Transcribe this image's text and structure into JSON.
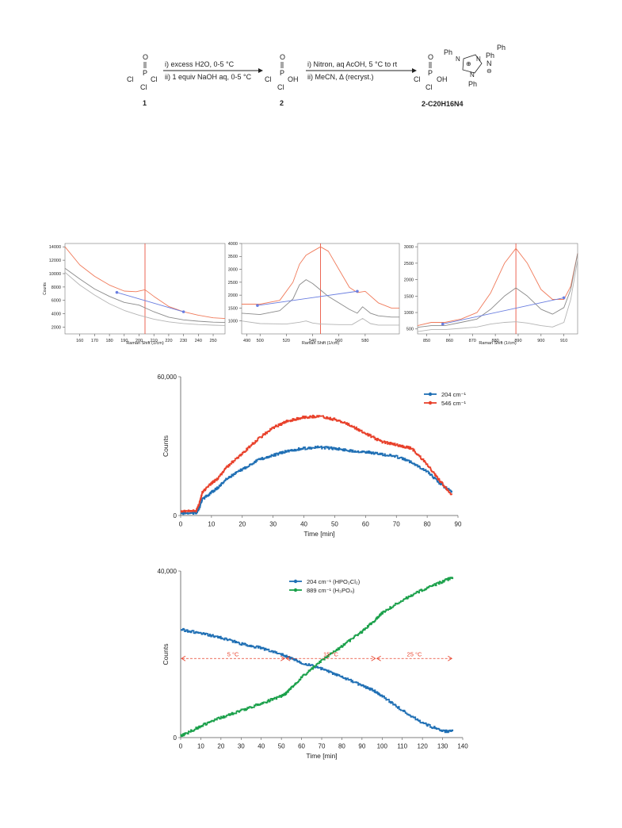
{
  "scheme": {
    "compound1_label": "1",
    "compound2_label": "2",
    "product_label": "2-C20H16N4",
    "step1_line1": "i) excess H2O, 0-5 °C",
    "step1_line2": "ii) 1 equiv NaOH aq, 0-5 °C",
    "step2_line1": "i) Nitron, aq AcOH, 5 °C to rt",
    "step2_line2": "ii) MeCN, Δ (recryst.)",
    "cl": "Cl",
    "p": "P",
    "o": "O",
    "oh": "OH",
    "ph": "Ph",
    "n": "N",
    "plus": "⊕",
    "minus": "⊖"
  },
  "colors": {
    "red": "#e8402a",
    "orange": "#f07a5a",
    "blue": "#1f6fb4",
    "green": "#1aa04a",
    "gray": "#8a8a8a",
    "lightgray": "#b4b4b4",
    "baseline": "#6a7ee0"
  },
  "chart_data": [
    {
      "type": "line",
      "xlabel": "Raman Shift (1/cm)",
      "ylabel": "Counts",
      "xlim": [
        150,
        258
      ],
      "ylim": [
        1000,
        14500
      ],
      "xticks": [
        160,
        170,
        180,
        190,
        200,
        210,
        220,
        230,
        240,
        250
      ],
      "yticks": [
        2000,
        4000,
        6000,
        8000,
        10000,
        12000,
        14000
      ],
      "marker_x": 204,
      "baseline": {
        "x": [
          185,
          230
        ],
        "y": [
          7200,
          4300
        ]
      },
      "series": [
        {
          "color": "orange",
          "x": [
            150,
            160,
            170,
            180,
            190,
            198,
            204,
            210,
            220,
            230,
            240,
            250,
            258
          ],
          "y": [
            14000,
            11300,
            9600,
            8300,
            7400,
            7300,
            7600,
            6600,
            5100,
            4300,
            3800,
            3400,
            3300
          ]
        },
        {
          "color": "gray",
          "x": [
            150,
            160,
            170,
            180,
            190,
            200,
            204,
            210,
            220,
            230,
            240,
            250,
            258
          ],
          "y": [
            10800,
            9200,
            7700,
            6600,
            5700,
            5300,
            4900,
            4300,
            3500,
            3100,
            2900,
            2750,
            2700
          ]
        },
        {
          "color": "lightgray",
          "x": [
            150,
            160,
            170,
            180,
            190,
            200,
            210,
            220,
            230,
            240,
            250,
            258
          ],
          "y": [
            10200,
            8300,
            6800,
            5500,
            4500,
            3800,
            3200,
            2800,
            2550,
            2400,
            2300,
            2250
          ]
        }
      ]
    },
    {
      "type": "line",
      "xlabel": "Raman Shift (1/cm)",
      "ylabel": "",
      "xlim": [
        486,
        606
      ],
      "ylim": [
        500,
        4000
      ],
      "xticks": [
        490,
        500,
        520,
        540,
        560,
        580
      ],
      "yticks": [
        1000,
        1500,
        2000,
        2500,
        3000,
        3500,
        4000
      ],
      "marker_x": 546,
      "baseline": {
        "x": [
          498,
          574
        ],
        "y": [
          1600,
          2150
        ]
      },
      "series": [
        {
          "color": "orange",
          "x": [
            486,
            500,
            515,
            525,
            530,
            535,
            540,
            546,
            552,
            560,
            568,
            574,
            580,
            590,
            600,
            606
          ],
          "y": [
            1650,
            1650,
            1800,
            2500,
            3200,
            3550,
            3700,
            3870,
            3700,
            3000,
            2300,
            2100,
            2150,
            1700,
            1500,
            1500
          ]
        },
        {
          "color": "gray",
          "x": [
            486,
            500,
            515,
            525,
            530,
            535,
            540,
            546,
            552,
            560,
            568,
            574,
            578,
            584,
            590,
            600,
            606
          ],
          "y": [
            1300,
            1250,
            1400,
            1850,
            2400,
            2600,
            2450,
            2200,
            1950,
            1700,
            1450,
            1300,
            1550,
            1300,
            1200,
            1150,
            1150
          ]
        },
        {
          "color": "lightgray",
          "x": [
            486,
            500,
            520,
            530,
            535,
            540,
            546,
            560,
            570,
            578,
            584,
            590,
            606
          ],
          "y": [
            1000,
            900,
            880,
            950,
            1000,
            920,
            880,
            860,
            860,
            1100,
            900,
            840,
            840
          ]
        }
      ]
    },
    {
      "type": "line",
      "xlabel": "Raman Shift (1/cm)",
      "ylabel": "",
      "xlim": [
        846,
        916
      ],
      "ylim": [
        350,
        3100
      ],
      "xticks": [
        850,
        860,
        870,
        880,
        890,
        900,
        910
      ],
      "yticks": [
        500,
        1000,
        1500,
        2000,
        2500,
        3000
      ],
      "marker_x": 889,
      "baseline": {
        "x": [
          857,
          910
        ],
        "y": [
          650,
          1450
        ]
      },
      "series": [
        {
          "color": "orange",
          "x": [
            846,
            852,
            858,
            865,
            872,
            878,
            884,
            889,
            894,
            900,
            905,
            910,
            913,
            916
          ],
          "y": [
            600,
            700,
            700,
            800,
            1000,
            1600,
            2500,
            2950,
            2500,
            1700,
            1400,
            1400,
            1800,
            2800
          ]
        },
        {
          "color": "gray",
          "x": [
            846,
            852,
            858,
            865,
            872,
            878,
            884,
            889,
            894,
            900,
            905,
            910,
            913,
            916
          ],
          "y": [
            550,
            600,
            600,
            700,
            800,
            1100,
            1500,
            1750,
            1500,
            1100,
            950,
            1150,
            1700,
            2800
          ]
        },
        {
          "color": "lightgray",
          "x": [
            846,
            852,
            858,
            865,
            872,
            878,
            884,
            889,
            894,
            900,
            905,
            910,
            913,
            916
          ],
          "y": [
            420,
            480,
            480,
            520,
            560,
            650,
            700,
            720,
            680,
            600,
            560,
            700,
            1400,
            2600
          ]
        }
      ]
    },
    {
      "type": "line",
      "xlabel": "Time [min]",
      "ylabel": "Counts",
      "xlim": [
        0,
        90
      ],
      "ylim": [
        0,
        60000
      ],
      "xticks": [
        0,
        10,
        20,
        30,
        40,
        50,
        60,
        70,
        80,
        90
      ],
      "yticks": [
        0,
        60000
      ],
      "ytick_labels": [
        "0",
        "60,000"
      ],
      "series": [
        {
          "name": "204 cm⁻¹",
          "color": "blue",
          "x": [
            0,
            5,
            6,
            7,
            10,
            12,
            15,
            20,
            25,
            30,
            35,
            40,
            45,
            50,
            55,
            60,
            65,
            70,
            75,
            80,
            84,
            88
          ],
          "y": [
            1000,
            1000,
            3000,
            7000,
            10000,
            12000,
            16000,
            20000,
            24000,
            26000,
            28000,
            29000,
            29500,
            29000,
            28000,
            27500,
            26500,
            25500,
            23000,
            19000,
            14000,
            10000
          ]
        },
        {
          "name": "546 cm⁻¹",
          "color": "red",
          "x": [
            0,
            5,
            6,
            7,
            10,
            12,
            15,
            20,
            25,
            30,
            35,
            40,
            45,
            50,
            55,
            60,
            65,
            70,
            75,
            80,
            84,
            88
          ],
          "y": [
            2000,
            2000,
            5000,
            10000,
            14000,
            16000,
            21000,
            27000,
            33000,
            38000,
            41000,
            42500,
            43000,
            41500,
            39000,
            35500,
            32000,
            30500,
            29000,
            22000,
            15000,
            9000
          ]
        }
      ]
    },
    {
      "type": "line",
      "xlabel": "Time [min]",
      "ylabel": "Counts",
      "xlim": [
        0,
        140
      ],
      "ylim": [
        0,
        40000
      ],
      "xticks": [
        0,
        10,
        20,
        30,
        40,
        50,
        60,
        70,
        80,
        90,
        100,
        110,
        120,
        130,
        140
      ],
      "yticks": [
        0,
        40000
      ],
      "ytick_labels": [
        "0",
        "40,000"
      ],
      "annotations": [
        {
          "text": "5 °C",
          "x_from": 0,
          "x_to": 52
        },
        {
          "text": "15 °C",
          "x_from": 52,
          "x_to": 97
        },
        {
          "text": "25 °C",
          "x_from": 97,
          "x_to": 135
        }
      ],
      "annotation_y": 19000,
      "series": [
        {
          "name": "204 cm⁻¹ (HPO₂Cl₂)",
          "color": "blue",
          "x": [
            0,
            10,
            20,
            30,
            40,
            50,
            55,
            60,
            70,
            80,
            90,
            95,
            100,
            110,
            120,
            130,
            135
          ],
          "y": [
            26000,
            25000,
            24000,
            22500,
            21500,
            20000,
            19000,
            18000,
            16500,
            14500,
            12500,
            11500,
            10000,
            6500,
            3500,
            1500,
            1500
          ]
        },
        {
          "name": "889 cm⁻¹ (H₃PO₄)",
          "color": "green",
          "x": [
            0,
            2,
            10,
            20,
            30,
            40,
            50,
            52,
            55,
            60,
            70,
            80,
            90,
            97,
            100,
            110,
            120,
            130,
            135
          ],
          "y": [
            500,
            800,
            2800,
            4800,
            6500,
            8200,
            10000,
            10500,
            12000,
            14500,
            18500,
            22000,
            25500,
            28500,
            30000,
            33000,
            35500,
            37500,
            38500
          ]
        }
      ]
    }
  ]
}
